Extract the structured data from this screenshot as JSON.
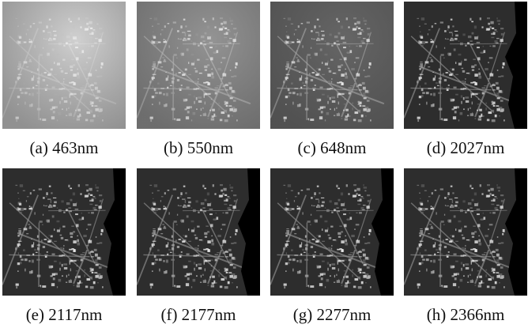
{
  "figure": {
    "panels": [
      {
        "caption": "(a) 463nm"
      },
      {
        "caption": "(b) 550nm"
      },
      {
        "caption": "(c) 648nm"
      },
      {
        "caption": "(d) 2027nm"
      },
      {
        "caption": "(e) 2117nm"
      },
      {
        "caption": "(f) 2177nm"
      },
      {
        "caption": "(g) 2277nm"
      },
      {
        "caption": "(h) 2366nm"
      }
    ]
  }
}
